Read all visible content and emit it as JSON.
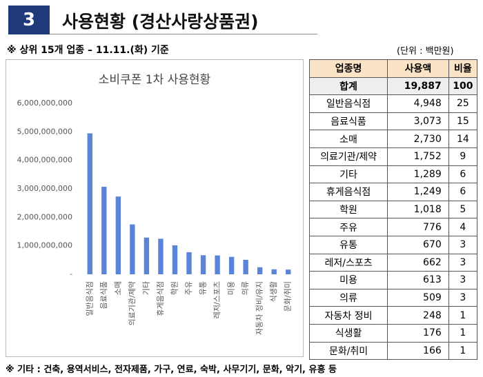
{
  "header": {
    "number": "3",
    "title": "사용현황 (경산사랑상품권)"
  },
  "subtitle": "※ 상위 15개 업종 – 11.11.(화) 기준",
  "unit": "(단위 : 백만원)",
  "chart_data": {
    "type": "bar",
    "title": "소비쿠폰 1차 사용현황",
    "categories": [
      "일반음식점",
      "음료식품",
      "소매",
      "의료기관/제약",
      "기타",
      "휴게음식점",
      "학원",
      "주유",
      "유통",
      "레저/스포츠",
      "미용",
      "의류",
      "자동차 정비/유지",
      "식생활",
      "문화/취미"
    ],
    "values": [
      4948000000,
      3073000000,
      2730000000,
      1752000000,
      1289000000,
      1249000000,
      1018000000,
      776000000,
      670000000,
      662000000,
      613000000,
      509000000,
      248000000,
      176000000,
      166000000
    ],
    "color": "#5b84d9",
    "ylim": [
      0,
      6000000000
    ],
    "yticks": [
      {
        "value": 0,
        "label": "-"
      },
      {
        "value": 1000000000,
        "label": "1,000,000,000"
      },
      {
        "value": 2000000000,
        "label": "2,000,000,000"
      },
      {
        "value": 3000000000,
        "label": "3,000,000,000"
      },
      {
        "value": 4000000000,
        "label": "4,000,000,000"
      },
      {
        "value": 5000000000,
        "label": "5,000,000,000"
      },
      {
        "value": 6000000000,
        "label": "6,000,000,000"
      }
    ],
    "grid": false
  },
  "table": {
    "columns": [
      "업종명",
      "사용액",
      "비율"
    ],
    "total": [
      "합계",
      "19,887",
      "100"
    ],
    "rows": [
      [
        "일반음식점",
        "4,948",
        "25"
      ],
      [
        "음료식품",
        "3,073",
        "15"
      ],
      [
        "소매",
        "2,730",
        "14"
      ],
      [
        "의료기관/제약",
        "1,752",
        "9"
      ],
      [
        "기타",
        "1,289",
        "6"
      ],
      [
        "휴게음식점",
        "1,249",
        "6"
      ],
      [
        "학원",
        "1,018",
        "5"
      ],
      [
        "주유",
        "776",
        "4"
      ],
      [
        "유통",
        "670",
        "3"
      ],
      [
        "레저/스포츠",
        "662",
        "3"
      ],
      [
        "미용",
        "613",
        "3"
      ],
      [
        "의류",
        "509",
        "3"
      ],
      [
        "자동차 정비",
        "248",
        "1"
      ],
      [
        "식생활",
        "176",
        "1"
      ],
      [
        "문화/취미",
        "166",
        "1"
      ]
    ]
  },
  "footnote": "※ 기타 : 건축, 용역서비스, 전자제품, 가구, 연료, 숙박, 사무기기, 문화, 악기, 유흥 등"
}
